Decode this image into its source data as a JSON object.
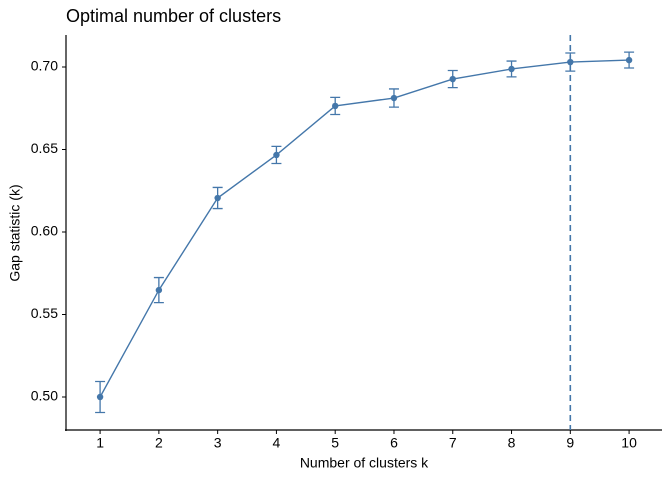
{
  "chart_data": {
    "type": "line",
    "title": "Optimal number of clusters",
    "x_label": "Number of clusters k",
    "y_label": "Gap statistic (k)",
    "x": [
      1,
      2,
      3,
      4,
      5,
      6,
      7,
      8,
      9,
      10
    ],
    "series": [
      {
        "name": "gap",
        "color": "#4477aa",
        "values": [
          0.5,
          0.5648,
          0.6206,
          0.6467,
          0.6764,
          0.6812,
          0.6927,
          0.6988,
          0.703,
          0.7042
        ],
        "errors": [
          0.0094,
          0.0076,
          0.0064,
          0.0052,
          0.0052,
          0.0055,
          0.0052,
          0.0048,
          0.0055,
          0.0048
        ]
      }
    ],
    "vline": 9,
    "xlim": [
      0.42,
      10.56
    ],
    "ylim": [
      0.48,
      0.7194
    ],
    "xticks": [
      1,
      2,
      3,
      4,
      5,
      6,
      7,
      8,
      9,
      10
    ],
    "yticks": [
      {
        "value": 0.5,
        "label": "0.50"
      },
      0.55,
      {
        "value": 0.6,
        "label": "0.60"
      },
      0.65,
      {
        "value": 0.7,
        "label": "0.70"
      }
    ]
  }
}
